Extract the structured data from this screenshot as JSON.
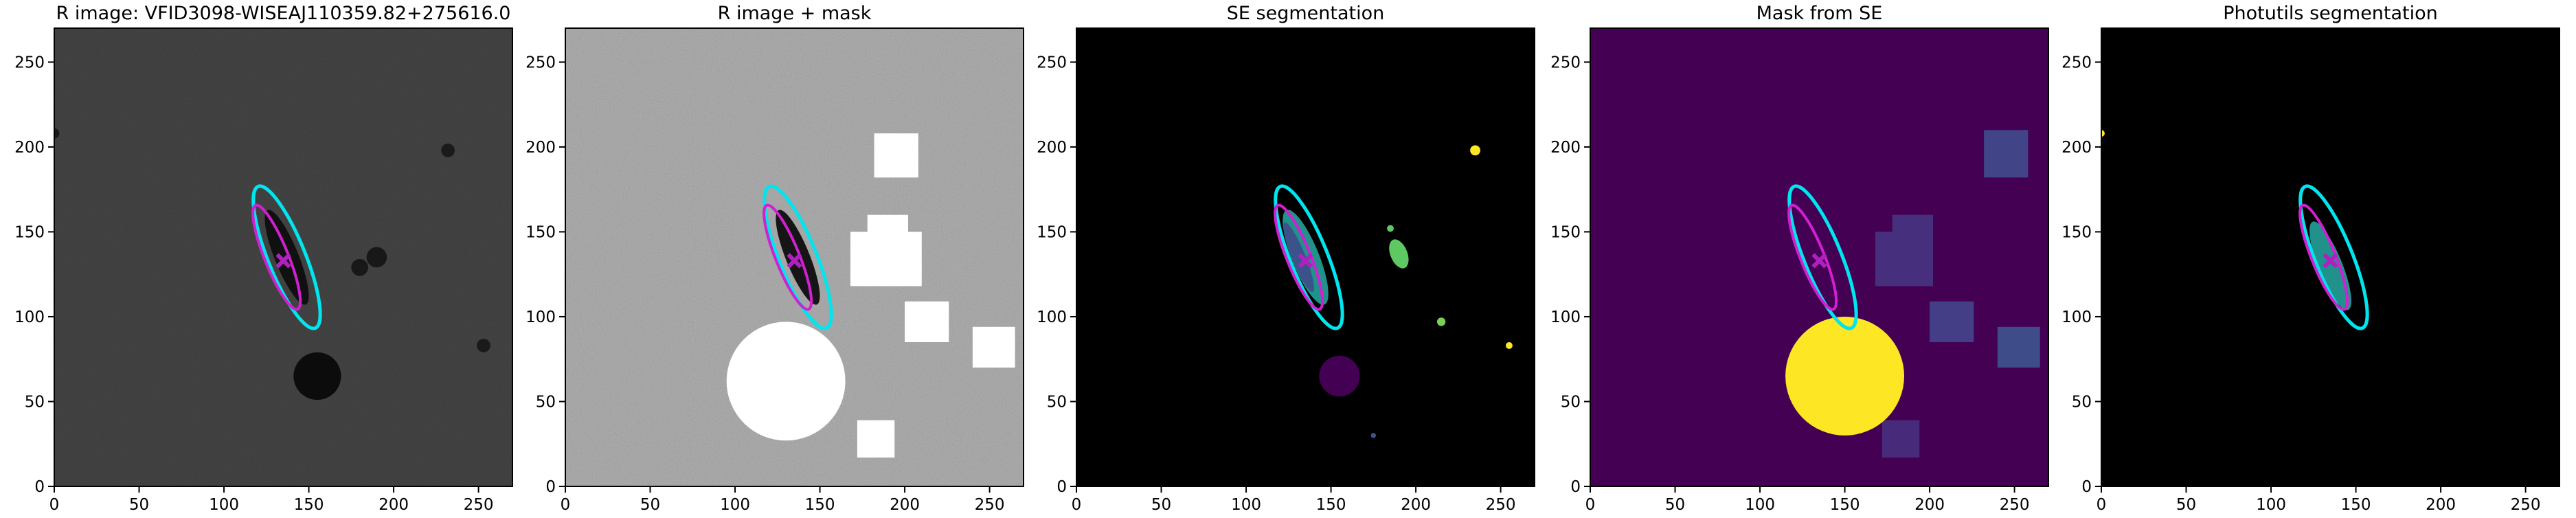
{
  "chart_data": [
    {
      "type": "image",
      "title": "R image: VFID3098-WISEAJ110359.82+275616.0",
      "xlim": [
        0,
        270
      ],
      "ylim": [
        0,
        270
      ],
      "xticks": [
        0,
        50,
        100,
        150,
        200,
        250
      ],
      "yticks": [
        0,
        50,
        100,
        150,
        200,
        250
      ]
    },
    {
      "type": "image",
      "title": "R image + mask",
      "xlim": [
        0,
        270
      ],
      "ylim": [
        0,
        270
      ],
      "xticks": [
        0,
        50,
        100,
        150,
        200,
        250
      ],
      "yticks": [
        0,
        50,
        100,
        150,
        200,
        250
      ]
    },
    {
      "type": "image",
      "title": "SE segmentation",
      "xlim": [
        0,
        270
      ],
      "ylim": [
        0,
        270
      ],
      "xticks": [
        0,
        50,
        100,
        150,
        200,
        250
      ],
      "yticks": [
        0,
        50,
        100,
        150,
        200,
        250
      ]
    },
    {
      "type": "image",
      "title": "Mask from SE",
      "xlim": [
        0,
        270
      ],
      "ylim": [
        0,
        270
      ],
      "xticks": [
        0,
        50,
        100,
        150,
        200,
        250
      ],
      "yticks": [
        0,
        50,
        100,
        150,
        200,
        250
      ]
    },
    {
      "type": "image",
      "title": "Photutils segmentation",
      "xlim": [
        0,
        270
      ],
      "ylim": [
        0,
        270
      ],
      "xticks": [
        0,
        50,
        100,
        150,
        200,
        250
      ],
      "yticks": [
        0,
        50,
        100,
        150,
        200,
        250
      ]
    }
  ]
}
